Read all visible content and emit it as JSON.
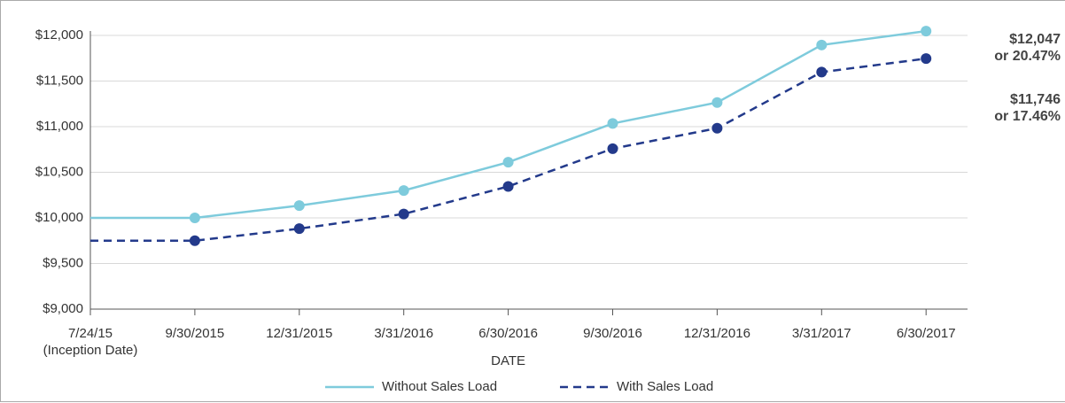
{
  "chart_data": {
    "type": "line",
    "x_label": "DATE",
    "categories": [
      "7/24/15\n(Inception Date)",
      "9/30/2015",
      "12/31/2015",
      "3/31/2016",
      "6/30/2016",
      "9/30/2016",
      "12/31/2016",
      "3/31/2017",
      "6/30/2017"
    ],
    "series": [
      {
        "name": "Without Sales Load",
        "color": "#7ecbdc",
        "dash": false,
        "values": [
          10000,
          10000,
          10135,
          10300,
          10610,
          11035,
          11265,
          11895,
          12047
        ]
      },
      {
        "name": "With Sales Load",
        "color": "#233a8b",
        "dash": true,
        "values": [
          9750,
          9750,
          9882,
          10043,
          10345,
          10759,
          10983,
          11598,
          11746
        ]
      }
    ],
    "ylim": [
      9000,
      12000
    ],
    "yticks": [
      {
        "value": 9000,
        "label": "$9,000"
      },
      {
        "value": 9500,
        "label": "$9,500"
      },
      {
        "value": 10000,
        "label": "$10,000"
      },
      {
        "value": 10500,
        "label": "$10,500"
      },
      {
        "value": 11000,
        "label": "$11,000"
      },
      {
        "value": 11500,
        "label": "$11,500"
      },
      {
        "value": 12000,
        "label": "$12,000"
      }
    ],
    "grid": true,
    "annotations": [
      "$12,047\nor 20.47%",
      "$11,746\nor 17.46%"
    ]
  }
}
